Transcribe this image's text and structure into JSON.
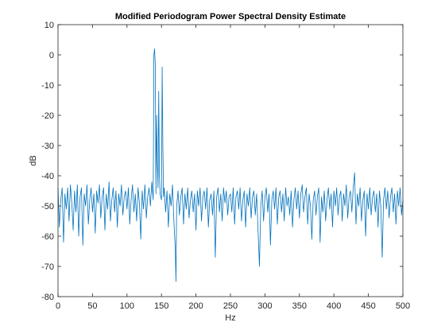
{
  "chart_data": {
    "type": "line",
    "title": "Modified Periodogram Power Spectral Density Estimate",
    "xlabel": "Hz",
    "ylabel": "dB",
    "xlim": [
      0,
      500
    ],
    "ylim": [
      -80,
      10
    ],
    "xticks": [
      "0",
      "50",
      "100",
      "150",
      "200",
      "250",
      "300",
      "350",
      "400",
      "450",
      "500"
    ],
    "yticks": [
      "10",
      "0",
      "-10",
      "-20",
      "-30",
      "-40",
      "-50",
      "-60",
      "-70",
      "-80"
    ],
    "grid": false,
    "legend": "none",
    "series": [
      {
        "color": "#0072BD",
        "points": [
          [
            0,
            -44
          ],
          [
            2,
            -57
          ],
          [
            4,
            -48
          ],
          [
            6,
            -44
          ],
          [
            8,
            -62
          ],
          [
            10,
            -46
          ],
          [
            12,
            -51
          ],
          [
            14,
            -44
          ],
          [
            16,
            -55
          ],
          [
            18,
            -43
          ],
          [
            20,
            -49
          ],
          [
            22,
            -58
          ],
          [
            24,
            -45
          ],
          [
            26,
            -52
          ],
          [
            28,
            -43
          ],
          [
            30,
            -60
          ],
          [
            32,
            -47
          ],
          [
            34,
            -44
          ],
          [
            36,
            -63
          ],
          [
            38,
            -46
          ],
          [
            40,
            -50
          ],
          [
            42,
            -43
          ],
          [
            44,
            -56
          ],
          [
            46,
            -48
          ],
          [
            48,
            -44
          ],
          [
            50,
            -52
          ],
          [
            52,
            -46
          ],
          [
            54,
            -59
          ],
          [
            56,
            -45
          ],
          [
            58,
            -49
          ],
          [
            60,
            -43
          ],
          [
            62,
            -54
          ],
          [
            64,
            -47
          ],
          [
            66,
            -44
          ],
          [
            68,
            -58
          ],
          [
            70,
            -46
          ],
          [
            72,
            -51
          ],
          [
            74,
            -42
          ],
          [
            76,
            -55
          ],
          [
            78,
            -48
          ],
          [
            80,
            -44
          ],
          [
            82,
            -52
          ],
          [
            84,
            -45
          ],
          [
            86,
            -57
          ],
          [
            88,
            -46
          ],
          [
            90,
            -50
          ],
          [
            92,
            -43
          ],
          [
            94,
            -53
          ],
          [
            96,
            -47
          ],
          [
            98,
            -45
          ],
          [
            100,
            -51
          ],
          [
            102,
            -44
          ],
          [
            104,
            -56
          ],
          [
            106,
            -48
          ],
          [
            108,
            -43
          ],
          [
            110,
            -52
          ],
          [
            112,
            -46
          ],
          [
            114,
            -55
          ],
          [
            116,
            -44
          ],
          [
            118,
            -49
          ],
          [
            120,
            -61
          ],
          [
            122,
            -45
          ],
          [
            124,
            -51
          ],
          [
            126,
            -43
          ],
          [
            128,
            -54
          ],
          [
            130,
            -47
          ],
          [
            132,
            -44
          ],
          [
            134,
            -50
          ],
          [
            136,
            -42
          ],
          [
            138,
            -48
          ],
          [
            139,
            0
          ],
          [
            140,
            2
          ],
          [
            141,
            -3
          ],
          [
            142,
            -46
          ],
          [
            143,
            -20
          ],
          [
            144,
            -35
          ],
          [
            145,
            -44
          ],
          [
            146,
            -12
          ],
          [
            147,
            -40
          ],
          [
            148,
            -46
          ],
          [
            150,
            -48
          ],
          [
            151,
            -4
          ],
          [
            152,
            -30
          ],
          [
            153,
            -47
          ],
          [
            154,
            -44
          ],
          [
            156,
            -52
          ],
          [
            158,
            -45
          ],
          [
            160,
            -57
          ],
          [
            162,
            -46
          ],
          [
            164,
            -50
          ],
          [
            166,
            -43
          ],
          [
            168,
            -55
          ],
          [
            170,
            -64
          ],
          [
            171,
            -75
          ],
          [
            172,
            -50
          ],
          [
            174,
            -45
          ],
          [
            176,
            -53
          ],
          [
            178,
            -47
          ],
          [
            180,
            -44
          ],
          [
            182,
            -56
          ],
          [
            184,
            -46
          ],
          [
            186,
            -51
          ],
          [
            188,
            -44
          ],
          [
            190,
            -54
          ],
          [
            192,
            -48
          ],
          [
            194,
            -45
          ],
          [
            196,
            -52
          ],
          [
            198,
            -46
          ],
          [
            200,
            -58
          ],
          [
            202,
            -45
          ],
          [
            204,
            -50
          ],
          [
            206,
            -44
          ],
          [
            208,
            -55
          ],
          [
            210,
            -47
          ],
          [
            212,
            -45
          ],
          [
            214,
            -51
          ],
          [
            216,
            -44
          ],
          [
            218,
            -57
          ],
          [
            220,
            -48
          ],
          [
            222,
            -46
          ],
          [
            224,
            -53
          ],
          [
            226,
            -45
          ],
          [
            228,
            -67
          ],
          [
            230,
            -47
          ],
          [
            232,
            -44
          ],
          [
            234,
            -52
          ],
          [
            236,
            -46
          ],
          [
            238,
            -55
          ],
          [
            240,
            -44
          ],
          [
            242,
            -49
          ],
          [
            244,
            -45
          ],
          [
            246,
            -53
          ],
          [
            248,
            -47
          ],
          [
            250,
            -46
          ],
          [
            252,
            -52
          ],
          [
            254,
            -44
          ],
          [
            256,
            -56
          ],
          [
            258,
            -47
          ],
          [
            260,
            -45
          ],
          [
            262,
            -51
          ],
          [
            264,
            -44
          ],
          [
            266,
            -55
          ],
          [
            268,
            -48
          ],
          [
            270,
            -45
          ],
          [
            272,
            -57
          ],
          [
            274,
            -46
          ],
          [
            276,
            -50
          ],
          [
            278,
            -44
          ],
          [
            280,
            -54
          ],
          [
            282,
            -47
          ],
          [
            284,
            -45
          ],
          [
            286,
            -53
          ],
          [
            288,
            -46
          ],
          [
            290,
            -58
          ],
          [
            292,
            -70
          ],
          [
            294,
            -50
          ],
          [
            296,
            -45
          ],
          [
            298,
            -55
          ],
          [
            300,
            -47
          ],
          [
            302,
            -44
          ],
          [
            304,
            -52
          ],
          [
            306,
            -46
          ],
          [
            308,
            -63
          ],
          [
            310,
            -48
          ],
          [
            312,
            -45
          ],
          [
            314,
            -51
          ],
          [
            316,
            -44
          ],
          [
            318,
            -56
          ],
          [
            320,
            -47
          ],
          [
            322,
            -45
          ],
          [
            324,
            -52
          ],
          [
            326,
            -46
          ],
          [
            328,
            -55
          ],
          [
            330,
            -44
          ],
          [
            332,
            -50
          ],
          [
            334,
            -47
          ],
          [
            336,
            -53
          ],
          [
            338,
            -45
          ],
          [
            340,
            -57
          ],
          [
            342,
            -48
          ],
          [
            344,
            -44
          ],
          [
            346,
            -51
          ],
          [
            348,
            -45
          ],
          [
            350,
            -54
          ],
          [
            352,
            -46
          ],
          [
            354,
            -43
          ],
          [
            356,
            -52
          ],
          [
            358,
            -47
          ],
          [
            360,
            -44
          ],
          [
            362,
            -56
          ],
          [
            364,
            -46
          ],
          [
            366,
            -50
          ],
          [
            368,
            -61
          ],
          [
            370,
            -48
          ],
          [
            372,
            -45
          ],
          [
            374,
            -53
          ],
          [
            376,
            -47
          ],
          [
            378,
            -44
          ],
          [
            380,
            -62
          ],
          [
            382,
            -47
          ],
          [
            384,
            -52
          ],
          [
            386,
            -45
          ],
          [
            388,
            -55
          ],
          [
            390,
            -48
          ],
          [
            392,
            -44
          ],
          [
            394,
            -51
          ],
          [
            396,
            -46
          ],
          [
            398,
            -57
          ],
          [
            400,
            -45
          ],
          [
            402,
            -50
          ],
          [
            404,
            -44
          ],
          [
            406,
            -53
          ],
          [
            408,
            -47
          ],
          [
            410,
            -45
          ],
          [
            412,
            -55
          ],
          [
            414,
            -46
          ],
          [
            416,
            -50
          ],
          [
            418,
            -43
          ],
          [
            420,
            -54
          ],
          [
            422,
            -47
          ],
          [
            424,
            -45
          ],
          [
            426,
            -52
          ],
          [
            428,
            -44
          ],
          [
            430,
            -39
          ],
          [
            432,
            -56
          ],
          [
            434,
            -46
          ],
          [
            436,
            -50
          ],
          [
            438,
            -44
          ],
          [
            440,
            -55
          ],
          [
            442,
            -48
          ],
          [
            444,
            -45
          ],
          [
            446,
            -60
          ],
          [
            448,
            -46
          ],
          [
            450,
            -51
          ],
          [
            452,
            -44
          ],
          [
            454,
            -53
          ],
          [
            456,
            -47
          ],
          [
            458,
            -45
          ],
          [
            460,
            -52
          ],
          [
            462,
            -46
          ],
          [
            464,
            -57
          ],
          [
            466,
            -45
          ],
          [
            468,
            -50
          ],
          [
            470,
            -67
          ],
          [
            472,
            -48
          ],
          [
            474,
            -44
          ],
          [
            476,
            -51
          ],
          [
            478,
            -45
          ],
          [
            480,
            -54
          ],
          [
            482,
            -47
          ],
          [
            484,
            -44
          ],
          [
            486,
            -52
          ],
          [
            488,
            -46
          ],
          [
            490,
            -56
          ],
          [
            492,
            -45
          ],
          [
            494,
            -50
          ],
          [
            496,
            -44
          ],
          [
            498,
            -53
          ],
          [
            500,
            -48
          ]
        ]
      }
    ]
  }
}
